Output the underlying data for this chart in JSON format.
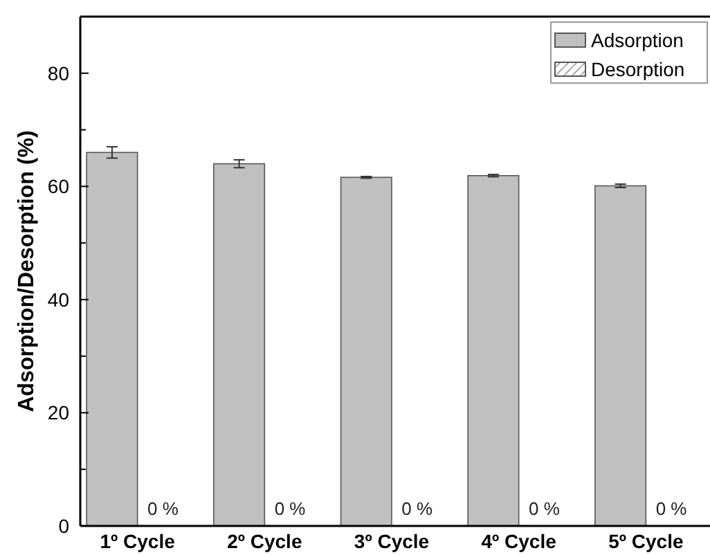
{
  "chart_data": {
    "type": "bar",
    "ylabel": "Adsorption/Desorption (%)",
    "categories": [
      "1º Cycle",
      "2º Cycle",
      "3º Cycle",
      "4º Cycle",
      "5º Cycle"
    ],
    "series": [
      {
        "name": "Adsorption",
        "color": "#c0c0c0",
        "values": [
          66,
          64,
          61.6,
          61.9,
          60.1
        ],
        "errors": [
          1,
          0.7,
          0.15,
          0.2,
          0.3
        ]
      },
      {
        "name": "Desorption",
        "color": "#ffffff",
        "values": [
          0,
          0,
          0,
          0,
          0
        ],
        "value_labels": [
          "0 %",
          "0 %",
          "0 %",
          "0 %",
          "0 %"
        ]
      }
    ],
    "ylim": [
      0,
      90
    ],
    "yticks": [
      0,
      {
        "value": 10,
        "label": null
      },
      20,
      {
        "value": 30,
        "label": null
      },
      40,
      {
        "value": 50,
        "label": null
      },
      60,
      {
        "value": 70,
        "label": null
      },
      80
    ],
    "grid": false,
    "legend": "top right"
  }
}
